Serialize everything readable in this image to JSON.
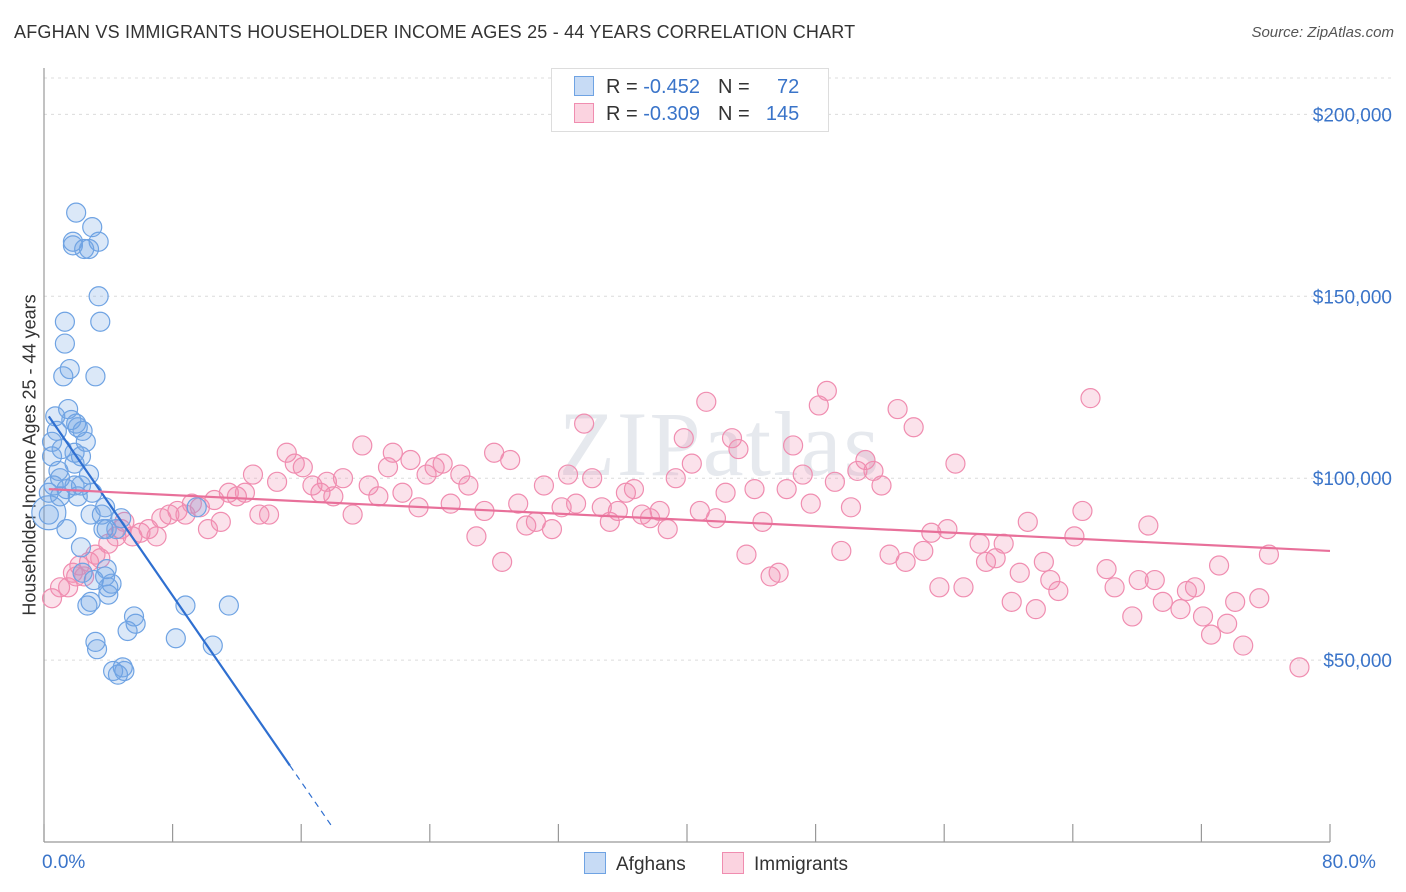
{
  "title": "AFGHAN VS IMMIGRANTS HOUSEHOLDER INCOME AGES 25 - 44 YEARS CORRELATION CHART",
  "source": "Source: ZipAtlas.com",
  "watermark": "ZIPatlas",
  "legend": {
    "r_label": "R =",
    "n_label": "N =",
    "rows": [
      {
        "r": "-0.452",
        "n": "72"
      },
      {
        "r": "-0.309",
        "n": "145"
      }
    ]
  },
  "chart_data": {
    "type": "scatter",
    "title": "AFGHAN VS IMMIGRANTS HOUSEHOLDER INCOME AGES 25 - 44 YEARS CORRELATION CHART",
    "xlabel": "",
    "ylabel": "Householder Income Ages 25 - 44 years",
    "xlim": [
      0,
      80
    ],
    "ylim": [
      0,
      210000
    ],
    "x_tick_labels": [
      "0.0%",
      "80.0%"
    ],
    "y_ticks": [
      50000,
      100000,
      150000,
      200000
    ],
    "y_tick_labels": [
      "$50,000",
      "$100,000",
      "$150,000",
      "$200,000"
    ],
    "grid": true,
    "legend_position": "bottom-center",
    "colors": {
      "afghans": "#6fa3e3",
      "immigrants": "#f08db0",
      "afghans_line": "#2f6fd0",
      "immigrants_line": "#e8709a",
      "axis_text": "#3a74c9"
    },
    "series": [
      {
        "name": "Afghans",
        "color": "#6fa3e3",
        "trend": {
          "x0": 0.3,
          "y0": 117000,
          "x1": 15.3,
          "y1": 21000,
          "x_dash_end": 18.0
        },
        "points": [
          [
            0.3,
            96000
          ],
          [
            0.3,
            90000
          ],
          [
            0.5,
            110000
          ],
          [
            0.5,
            106000
          ],
          [
            0.6,
            98000
          ],
          [
            0.7,
            117000
          ],
          [
            0.8,
            113000
          ],
          [
            0.9,
            102000
          ],
          [
            1.0,
            100000
          ],
          [
            1.0,
            95000
          ],
          [
            1.1,
            108000
          ],
          [
            1.2,
            128000
          ],
          [
            1.3,
            137000
          ],
          [
            1.3,
            143000
          ],
          [
            1.4,
            97000
          ],
          [
            1.4,
            86000
          ],
          [
            1.5,
            119000
          ],
          [
            1.6,
            130000
          ],
          [
            1.7,
            116000
          ],
          [
            1.8,
            164000
          ],
          [
            1.8,
            165000
          ],
          [
            1.9,
            107000
          ],
          [
            1.9,
            104000
          ],
          [
            1.9,
            98000
          ],
          [
            2.0,
            173000
          ],
          [
            2.0,
            115000
          ],
          [
            2.1,
            114000
          ],
          [
            2.1,
            95000
          ],
          [
            2.3,
            106000
          ],
          [
            2.3,
            98000
          ],
          [
            2.3,
            81000
          ],
          [
            2.4,
            113000
          ],
          [
            2.4,
            74000
          ],
          [
            2.5,
            163000
          ],
          [
            2.6,
            110000
          ],
          [
            2.7,
            65000
          ],
          [
            2.8,
            163000
          ],
          [
            2.8,
            101000
          ],
          [
            2.9,
            66000
          ],
          [
            2.9,
            90000
          ],
          [
            3.0,
            169000
          ],
          [
            3.0,
            96000
          ],
          [
            3.1,
            72000
          ],
          [
            3.2,
            128000
          ],
          [
            3.2,
            55000
          ],
          [
            3.3,
            53000
          ],
          [
            3.4,
            165000
          ],
          [
            3.4,
            150000
          ],
          [
            3.5,
            143000
          ],
          [
            3.6,
            90000
          ],
          [
            3.7,
            86000
          ],
          [
            3.8,
            92000
          ],
          [
            3.8,
            73000
          ],
          [
            3.9,
            86000
          ],
          [
            3.9,
            75000
          ],
          [
            4.0,
            68000
          ],
          [
            4.0,
            70000
          ],
          [
            4.2,
            71000
          ],
          [
            4.3,
            47000
          ],
          [
            4.5,
            86000
          ],
          [
            4.6,
            46000
          ],
          [
            4.8,
            89000
          ],
          [
            4.9,
            48000
          ],
          [
            5.0,
            47000
          ],
          [
            5.2,
            58000
          ],
          [
            5.6,
            62000
          ],
          [
            5.7,
            60000
          ],
          [
            8.2,
            56000
          ],
          [
            8.8,
            65000
          ],
          [
            10.5,
            54000
          ],
          [
            11.5,
            65000
          ],
          [
            9.5,
            92000
          ]
        ]
      },
      {
        "name": "Immigrants",
        "color": "#f08db0",
        "trend": {
          "x0": 0.3,
          "y0": 97000,
          "x1": 80.0,
          "y1": 80000
        },
        "points": [
          [
            0.5,
            67000
          ],
          [
            1.0,
            70000
          ],
          [
            1.5,
            70000
          ],
          [
            1.8,
            74000
          ],
          [
            2.0,
            73000
          ],
          [
            2.2,
            76000
          ],
          [
            2.5,
            73000
          ],
          [
            2.8,
            77000
          ],
          [
            3.2,
            79000
          ],
          [
            3.5,
            78000
          ],
          [
            4.0,
            82000
          ],
          [
            4.5,
            84000
          ],
          [
            4.8,
            86000
          ],
          [
            5.0,
            88000
          ],
          [
            5.5,
            84000
          ],
          [
            6.0,
            85000
          ],
          [
            6.5,
            86000
          ],
          [
            7.0,
            84000
          ],
          [
            7.3,
            89000
          ],
          [
            7.8,
            90000
          ],
          [
            8.3,
            91000
          ],
          [
            8.8,
            90000
          ],
          [
            9.2,
            93000
          ],
          [
            9.7,
            92000
          ],
          [
            10.2,
            86000
          ],
          [
            10.6,
            94000
          ],
          [
            11.0,
            88000
          ],
          [
            11.5,
            96000
          ],
          [
            12.0,
            95000
          ],
          [
            12.5,
            96000
          ],
          [
            13.0,
            101000
          ],
          [
            13.4,
            90000
          ],
          [
            14.0,
            90000
          ],
          [
            14.5,
            99000
          ],
          [
            15.1,
            107000
          ],
          [
            15.6,
            104000
          ],
          [
            16.1,
            103000
          ],
          [
            16.7,
            98000
          ],
          [
            17.2,
            96000
          ],
          [
            17.6,
            99000
          ],
          [
            18.0,
            95000
          ],
          [
            18.6,
            100000
          ],
          [
            19.2,
            90000
          ],
          [
            19.8,
            109000
          ],
          [
            20.2,
            98000
          ],
          [
            20.8,
            95000
          ],
          [
            21.4,
            103000
          ],
          [
            21.7,
            107000
          ],
          [
            22.3,
            96000
          ],
          [
            22.8,
            105000
          ],
          [
            23.3,
            92000
          ],
          [
            23.8,
            101000
          ],
          [
            24.3,
            103000
          ],
          [
            24.8,
            104000
          ],
          [
            25.3,
            93000
          ],
          [
            25.9,
            101000
          ],
          [
            26.4,
            98000
          ],
          [
            26.9,
            84000
          ],
          [
            27.4,
            91000
          ],
          [
            28.0,
            107000
          ],
          [
            28.5,
            77000
          ],
          [
            29.0,
            105000
          ],
          [
            29.5,
            93000
          ],
          [
            30.0,
            87000
          ],
          [
            30.6,
            88000
          ],
          [
            31.1,
            98000
          ],
          [
            31.6,
            86000
          ],
          [
            32.2,
            92000
          ],
          [
            32.6,
            101000
          ],
          [
            33.1,
            93000
          ],
          [
            33.6,
            115000
          ],
          [
            34.1,
            100000
          ],
          [
            34.7,
            92000
          ],
          [
            35.2,
            88000
          ],
          [
            35.7,
            91000
          ],
          [
            36.2,
            96000
          ],
          [
            36.7,
            97000
          ],
          [
            37.2,
            90000
          ],
          [
            37.7,
            89000
          ],
          [
            38.3,
            91000
          ],
          [
            38.8,
            86000
          ],
          [
            39.3,
            100000
          ],
          [
            39.8,
            111000
          ],
          [
            40.3,
            104000
          ],
          [
            40.8,
            91000
          ],
          [
            41.2,
            121000
          ],
          [
            41.8,
            89000
          ],
          [
            42.4,
            96000
          ],
          [
            42.8,
            111000
          ],
          [
            43.2,
            108000
          ],
          [
            43.7,
            79000
          ],
          [
            44.2,
            97000
          ],
          [
            44.7,
            88000
          ],
          [
            45.2,
            73000
          ],
          [
            45.7,
            74000
          ],
          [
            46.2,
            97000
          ],
          [
            46.6,
            109000
          ],
          [
            47.2,
            101000
          ],
          [
            47.7,
            93000
          ],
          [
            48.2,
            120000
          ],
          [
            48.7,
            124000
          ],
          [
            49.2,
            99000
          ],
          [
            49.6,
            80000
          ],
          [
            50.2,
            92000
          ],
          [
            50.6,
            102000
          ],
          [
            51.1,
            105000
          ],
          [
            51.6,
            102000
          ],
          [
            52.1,
            98000
          ],
          [
            52.6,
            79000
          ],
          [
            53.1,
            119000
          ],
          [
            53.6,
            77000
          ],
          [
            54.1,
            114000
          ],
          [
            54.7,
            80000
          ],
          [
            55.2,
            85000
          ],
          [
            55.7,
            70000
          ],
          [
            56.2,
            86000
          ],
          [
            56.7,
            104000
          ],
          [
            57.2,
            70000
          ],
          [
            58.2,
            82000
          ],
          [
            58.6,
            77000
          ],
          [
            59.2,
            78000
          ],
          [
            59.7,
            82000
          ],
          [
            60.2,
            66000
          ],
          [
            60.7,
            74000
          ],
          [
            61.2,
            88000
          ],
          [
            61.7,
            64000
          ],
          [
            62.2,
            77000
          ],
          [
            62.6,
            72000
          ],
          [
            63.1,
            69000
          ],
          [
            64.1,
            84000
          ],
          [
            64.6,
            91000
          ],
          [
            65.1,
            122000
          ],
          [
            66.1,
            75000
          ],
          [
            66.6,
            70000
          ],
          [
            67.7,
            62000
          ],
          [
            68.1,
            72000
          ],
          [
            68.7,
            87000
          ],
          [
            69.1,
            72000
          ],
          [
            69.6,
            66000
          ],
          [
            70.7,
            64000
          ],
          [
            71.1,
            69000
          ],
          [
            71.6,
            70000
          ],
          [
            72.1,
            62000
          ],
          [
            72.6,
            57000
          ],
          [
            73.1,
            76000
          ],
          [
            73.6,
            60000
          ],
          [
            74.1,
            66000
          ],
          [
            74.6,
            54000
          ],
          [
            75.6,
            67000
          ],
          [
            76.2,
            79000
          ],
          [
            78.1,
            48000
          ]
        ]
      }
    ]
  },
  "bottom_legend": [
    "Afghans",
    "Immigrants"
  ]
}
